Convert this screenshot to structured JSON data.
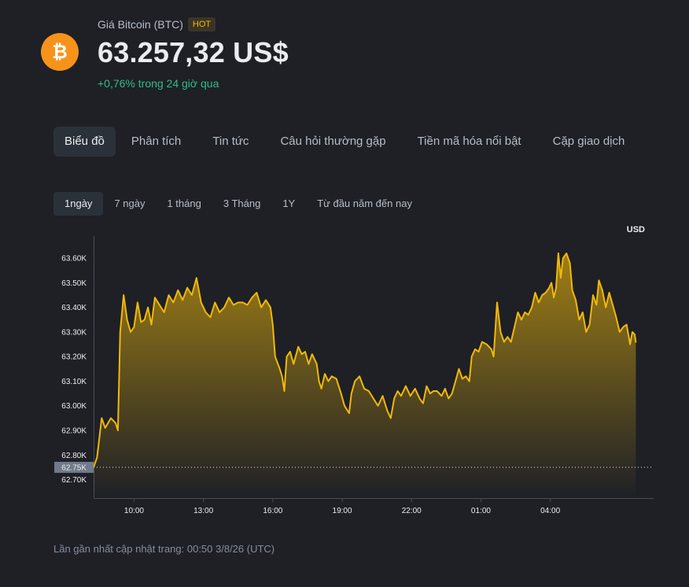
{
  "header": {
    "subtitle": "Giá Bitcoin (BTC)",
    "badge": "HOT",
    "price": "63.257,32 US$",
    "change": "+0,76% trong 24 giờ qua",
    "logo_icon": "bitcoin-icon"
  },
  "tabs": [
    {
      "label": "Biểu đồ",
      "active": true
    },
    {
      "label": "Phân tích"
    },
    {
      "label": "Tin tức"
    },
    {
      "label": "Câu hỏi thường gặp"
    },
    {
      "label": "Tiền mã hóa nổi bật"
    },
    {
      "label": "Cặp giao dịch"
    }
  ],
  "ranges": [
    {
      "label": "1ngày",
      "active": true
    },
    {
      "label": "7 ngày"
    },
    {
      "label": "1 tháng"
    },
    {
      "label": "3 Tháng"
    },
    {
      "label": "1Y"
    },
    {
      "label": "Từ đầu năm đến nay"
    }
  ],
  "footer": {
    "updated": "Lần gần nhất cập nhật trang: 00:50 3/8/26 (UTC)"
  },
  "colors": {
    "line": "#f0b90b",
    "positive": "#2ebd85",
    "brand": "#f7931a",
    "background": "#1e2026"
  },
  "chart_data": {
    "type": "area",
    "currency_label": "USD",
    "y_ticks": [
      "63.60K",
      "63.50K",
      "63.40K",
      "63.30K",
      "63.20K",
      "63.10K",
      "63.00K",
      "62.90K",
      "62.80K",
      "62.70K"
    ],
    "y_tick_values": [
      63600,
      63500,
      63400,
      63300,
      63200,
      63100,
      63000,
      62900,
      62800,
      62700
    ],
    "x_ticks": [
      "10:00",
      "13:00",
      "16:00",
      "19:00",
      "22:00",
      "01:00",
      "04:00"
    ],
    "x_tick_hours": [
      10,
      13,
      16,
      19,
      22,
      25,
      28
    ],
    "ylim": [
      62625,
      63690
    ],
    "xlim_hours": [
      8.25,
      32.4
    ],
    "baseline_label": "62.75K",
    "baseline_value": 62750,
    "grid": false,
    "series": [
      {
        "points": [
          [
            8.25,
            62750
          ],
          [
            8.4,
            62790
          ],
          [
            8.6,
            62950
          ],
          [
            8.75,
            62910
          ],
          [
            9.0,
            62950
          ],
          [
            9.2,
            62930
          ],
          [
            9.3,
            62900
          ],
          [
            9.4,
            63300
          ],
          [
            9.55,
            63450
          ],
          [
            9.7,
            63350
          ],
          [
            9.85,
            63300
          ],
          [
            10.0,
            63320
          ],
          [
            10.15,
            63420
          ],
          [
            10.3,
            63340
          ],
          [
            10.45,
            63350
          ],
          [
            10.6,
            63400
          ],
          [
            10.75,
            63330
          ],
          [
            10.9,
            63440
          ],
          [
            11.1,
            63410
          ],
          [
            11.3,
            63380
          ],
          [
            11.5,
            63450
          ],
          [
            11.7,
            63420
          ],
          [
            11.9,
            63470
          ],
          [
            12.1,
            63430
          ],
          [
            12.3,
            63480
          ],
          [
            12.5,
            63450
          ],
          [
            12.7,
            63520
          ],
          [
            12.9,
            63420
          ],
          [
            13.1,
            63380
          ],
          [
            13.3,
            63360
          ],
          [
            13.5,
            63420
          ],
          [
            13.7,
            63380
          ],
          [
            13.9,
            63400
          ],
          [
            14.1,
            63440
          ],
          [
            14.3,
            63410
          ],
          [
            14.5,
            63420
          ],
          [
            14.7,
            63420
          ],
          [
            14.9,
            63410
          ],
          [
            15.1,
            63440
          ],
          [
            15.3,
            63460
          ],
          [
            15.5,
            63400
          ],
          [
            15.7,
            63430
          ],
          [
            15.9,
            63400
          ],
          [
            16.0,
            63330
          ],
          [
            16.1,
            63200
          ],
          [
            16.3,
            63150
          ],
          [
            16.4,
            63120
          ],
          [
            16.5,
            63060
          ],
          [
            16.6,
            63200
          ],
          [
            16.75,
            63220
          ],
          [
            16.9,
            63170
          ],
          [
            17.1,
            63240
          ],
          [
            17.25,
            63210
          ],
          [
            17.4,
            63220
          ],
          [
            17.55,
            63170
          ],
          [
            17.7,
            63210
          ],
          [
            17.9,
            63170
          ],
          [
            18.0,
            63100
          ],
          [
            18.1,
            63070
          ],
          [
            18.25,
            63130
          ],
          [
            18.4,
            63100
          ],
          [
            18.55,
            63120
          ],
          [
            18.75,
            63110
          ],
          [
            18.95,
            63050
          ],
          [
            19.1,
            63000
          ],
          [
            19.3,
            62970
          ],
          [
            19.4,
            63050
          ],
          [
            19.55,
            63100
          ],
          [
            19.75,
            63120
          ],
          [
            19.95,
            63070
          ],
          [
            20.15,
            63060
          ],
          [
            20.35,
            63030
          ],
          [
            20.55,
            63000
          ],
          [
            20.75,
            63040
          ],
          [
            20.95,
            62980
          ],
          [
            21.1,
            62950
          ],
          [
            21.25,
            63030
          ],
          [
            21.4,
            63060
          ],
          [
            21.55,
            63040
          ],
          [
            21.75,
            63080
          ],
          [
            21.95,
            63040
          ],
          [
            22.15,
            63070
          ],
          [
            22.35,
            63030
          ],
          [
            22.5,
            63010
          ],
          [
            22.65,
            63080
          ],
          [
            22.8,
            63050
          ],
          [
            22.95,
            63060
          ],
          [
            23.1,
            63060
          ],
          [
            23.3,
            63040
          ],
          [
            23.45,
            63070
          ],
          [
            23.6,
            63030
          ],
          [
            23.75,
            63050
          ],
          [
            23.9,
            63100
          ],
          [
            24.05,
            63150
          ],
          [
            24.2,
            63110
          ],
          [
            24.35,
            63120
          ],
          [
            24.5,
            63100
          ],
          [
            24.6,
            63200
          ],
          [
            24.75,
            63230
          ],
          [
            24.9,
            63220
          ],
          [
            25.05,
            63260
          ],
          [
            25.25,
            63250
          ],
          [
            25.45,
            63230
          ],
          [
            25.55,
            63200
          ],
          [
            25.7,
            63420
          ],
          [
            25.85,
            63300
          ],
          [
            26.0,
            63260
          ],
          [
            26.15,
            63280
          ],
          [
            26.3,
            63260
          ],
          [
            26.45,
            63320
          ],
          [
            26.6,
            63380
          ],
          [
            26.75,
            63350
          ],
          [
            26.9,
            63380
          ],
          [
            27.05,
            63370
          ],
          [
            27.2,
            63400
          ],
          [
            27.35,
            63460
          ],
          [
            27.5,
            63420
          ],
          [
            27.65,
            63450
          ],
          [
            27.8,
            63460
          ],
          [
            27.95,
            63480
          ],
          [
            28.05,
            63500
          ],
          [
            28.15,
            63440
          ],
          [
            28.25,
            63480
          ],
          [
            28.35,
            63620
          ],
          [
            28.45,
            63520
          ],
          [
            28.55,
            63600
          ],
          [
            28.7,
            63620
          ],
          [
            28.85,
            63580
          ],
          [
            28.95,
            63470
          ],
          [
            29.1,
            63430
          ],
          [
            29.25,
            63350
          ],
          [
            29.4,
            63380
          ],
          [
            29.55,
            63300
          ],
          [
            29.7,
            63330
          ],
          [
            29.85,
            63450
          ],
          [
            30.0,
            63410
          ],
          [
            30.1,
            63510
          ],
          [
            30.25,
            63470
          ],
          [
            30.4,
            63400
          ],
          [
            30.55,
            63460
          ],
          [
            30.7,
            63410
          ],
          [
            30.85,
            63360
          ],
          [
            31.0,
            63300
          ],
          [
            31.15,
            63320
          ],
          [
            31.3,
            63330
          ],
          [
            31.45,
            63250
          ],
          [
            31.55,
            63300
          ],
          [
            31.65,
            63290
          ],
          [
            31.7,
            63257
          ]
        ]
      }
    ]
  }
}
